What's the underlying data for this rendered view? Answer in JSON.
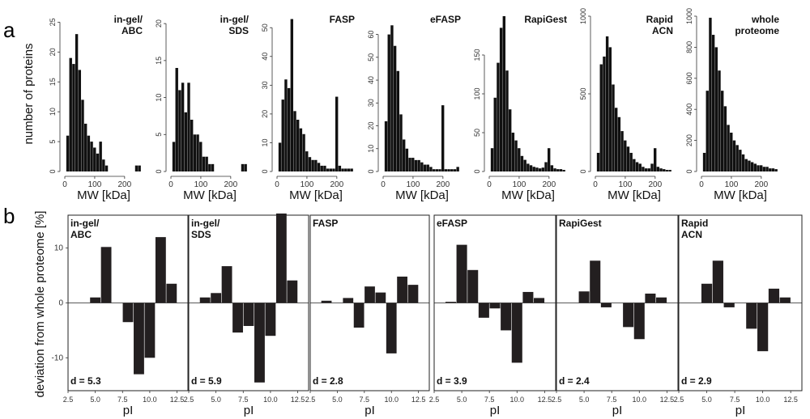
{
  "figure": {
    "panel_a_label": "a",
    "panel_b_label": "b",
    "bar_color": "#111111",
    "deviation_bar_color": "#231f20"
  },
  "chart_data": [
    {
      "type": "bar",
      "panel": "a",
      "title_lines": [
        "in-gel/",
        "ABC"
      ],
      "xlabel": "MW [kDa]",
      "ylabel": "number of proteins",
      "xlim": [
        0,
        260
      ],
      "ylim": [
        0,
        26
      ],
      "xticks": [
        0,
        100,
        200
      ],
      "yticks": [
        0,
        5,
        10,
        15,
        20,
        25
      ],
      "bin_width": 10,
      "x": [
        10,
        20,
        30,
        40,
        50,
        60,
        70,
        80,
        90,
        100,
        110,
        120,
        130,
        140,
        150,
        160,
        170,
        180,
        190,
        200,
        210,
        220,
        230,
        240,
        250
      ],
      "values": [
        6,
        19,
        18,
        23,
        17,
        12,
        8,
        6,
        5,
        4,
        3,
        5,
        2,
        1,
        0,
        0,
        0,
        0,
        0,
        0,
        0,
        0,
        0,
        1,
        1
      ]
    },
    {
      "type": "bar",
      "panel": "a",
      "title_lines": [
        "in-gel/",
        "SDS"
      ],
      "xlabel": "MW [kDa]",
      "xlim": [
        0,
        260
      ],
      "ylim": [
        0,
        21
      ],
      "xticks": [
        0,
        100,
        200
      ],
      "yticks": [
        0,
        5,
        10,
        15,
        20
      ],
      "bin_width": 10,
      "x": [
        10,
        20,
        30,
        40,
        50,
        60,
        70,
        80,
        90,
        100,
        110,
        120,
        130,
        140,
        150,
        160,
        170,
        180,
        190,
        200,
        210,
        220,
        230,
        240,
        250
      ],
      "values": [
        4,
        14,
        11,
        12,
        8,
        12,
        7,
        5,
        5,
        4,
        2,
        2,
        1,
        1,
        0,
        0,
        0,
        0,
        0,
        0,
        0,
        0,
        0,
        1,
        1
      ]
    },
    {
      "type": "bar",
      "panel": "a",
      "title_lines": [
        "FASP"
      ],
      "xlabel": "MW [kDa]",
      "xlim": [
        0,
        260
      ],
      "ylim": [
        0,
        54
      ],
      "xticks": [
        0,
        100,
        200
      ],
      "yticks": [
        0,
        10,
        20,
        30,
        40,
        50
      ],
      "bin_width": 10,
      "x": [
        10,
        20,
        30,
        40,
        50,
        60,
        70,
        80,
        90,
        100,
        110,
        120,
        130,
        140,
        150,
        160,
        170,
        180,
        190,
        200,
        210,
        220,
        230,
        240,
        250
      ],
      "values": [
        10,
        25,
        32,
        29,
        53,
        21,
        18,
        15,
        13,
        7,
        5,
        4,
        4,
        3,
        2,
        2,
        1,
        1,
        1,
        26,
        2,
        1,
        1,
        1,
        1
      ]
    },
    {
      "type": "bar",
      "panel": "a",
      "title_lines": [
        "eFASP"
      ],
      "xlabel": "MW [kDa]",
      "xlim": [
        0,
        260
      ],
      "ylim": [
        0,
        68
      ],
      "xticks": [
        0,
        100,
        200
      ],
      "yticks": [
        0,
        10,
        20,
        30,
        40,
        50,
        60
      ],
      "bin_width": 10,
      "x": [
        10,
        20,
        30,
        40,
        50,
        60,
        70,
        80,
        90,
        100,
        110,
        120,
        130,
        140,
        150,
        160,
        170,
        180,
        190,
        200,
        210,
        220,
        230,
        240,
        250
      ],
      "values": [
        22,
        60,
        64,
        55,
        44,
        25,
        14,
        10,
        6,
        6,
        5,
        5,
        4,
        3,
        3,
        2,
        1,
        1,
        1,
        29,
        1,
        1,
        1,
        1,
        2
      ]
    },
    {
      "type": "bar",
      "panel": "a",
      "title_lines": [
        "RapiGest"
      ],
      "xlabel": "MW [kDa]",
      "xlim": [
        0,
        260
      ],
      "ylim": [
        0,
        200
      ],
      "xticks": [
        0,
        100,
        200
      ],
      "yticks": [
        0,
        50,
        100,
        150
      ],
      "bin_width": 10,
      "x": [
        10,
        20,
        30,
        40,
        50,
        60,
        70,
        80,
        90,
        100,
        110,
        120,
        130,
        140,
        150,
        160,
        170,
        180,
        190,
        200,
        210,
        220,
        230,
        240,
        250
      ],
      "values": [
        30,
        95,
        140,
        185,
        200,
        130,
        80,
        50,
        40,
        30,
        20,
        15,
        10,
        8,
        6,
        5,
        4,
        5,
        12,
        30,
        8,
        4,
        3,
        3,
        2
      ]
    },
    {
      "type": "bar",
      "panel": "a",
      "title_lines": [
        "Rapid",
        "ACN"
      ],
      "xlabel": "MW [kDa]",
      "xlim": [
        0,
        260
      ],
      "ylim": [
        0,
        1000
      ],
      "xticks": [
        0,
        100,
        200
      ],
      "yticks": [
        0,
        500,
        1000
      ],
      "bin_width": 10,
      "x": [
        10,
        20,
        30,
        40,
        50,
        60,
        70,
        80,
        90,
        100,
        110,
        120,
        130,
        140,
        150,
        160,
        170,
        180,
        190,
        200,
        210,
        220,
        230,
        240,
        250
      ],
      "values": [
        120,
        690,
        740,
        870,
        800,
        560,
        410,
        350,
        260,
        200,
        160,
        120,
        80,
        60,
        50,
        30,
        20,
        20,
        50,
        150,
        30,
        20,
        15,
        10,
        10
      ]
    },
    {
      "type": "bar",
      "panel": "a",
      "title_lines": [
        "whole",
        "proteome"
      ],
      "xlabel": "MW [kDa]",
      "xlim": [
        0,
        260
      ],
      "ylim": [
        0,
        1000
      ],
      "xticks": [
        0,
        100,
        200
      ],
      "yticks": [
        0,
        200,
        400,
        600,
        800,
        1000
      ],
      "bin_width": 10,
      "x": [
        10,
        20,
        30,
        40,
        50,
        60,
        70,
        80,
        90,
        100,
        110,
        120,
        130,
        140,
        150,
        160,
        170,
        180,
        190,
        200,
        210,
        220,
        230,
        240,
        250
      ],
      "values": [
        120,
        520,
        990,
        880,
        800,
        650,
        520,
        420,
        300,
        250,
        200,
        170,
        140,
        110,
        80,
        70,
        60,
        50,
        40,
        40,
        30,
        30,
        20,
        20,
        15
      ]
    },
    {
      "type": "bar",
      "panel": "b",
      "title_lines": [
        "in-gel/",
        "ABC"
      ],
      "ylabel": "deviation from whole proteome [%]",
      "xlabel": "pI",
      "xlim": [
        2.5,
        13.5
      ],
      "ylim": [
        -16,
        16
      ],
      "xticks": [
        2.5,
        5.0,
        7.5,
        10.0,
        12.5
      ],
      "yticks": [
        -10,
        0,
        10
      ],
      "bin_width": 1,
      "x": [
        3,
        4,
        5,
        6,
        7,
        8,
        9,
        10,
        11,
        12,
        13
      ],
      "values": [
        0,
        0,
        1,
        10.2,
        0,
        -3.5,
        -13,
        -10,
        12,
        3.5,
        0
      ],
      "annotation": "d = 5.3"
    },
    {
      "type": "bar",
      "panel": "b",
      "title_lines": [
        "in-gel/",
        "SDS"
      ],
      "xlabel": "pI",
      "xlim": [
        2.5,
        13.5
      ],
      "ylim": [
        -16,
        16
      ],
      "xticks": [
        2.5,
        5.0,
        7.5,
        10.0,
        12.5
      ],
      "yticks": [
        -10,
        0,
        10
      ],
      "bin_width": 1,
      "x": [
        3,
        4,
        5,
        6,
        7,
        8,
        9,
        10,
        11,
        12,
        13
      ],
      "values": [
        0,
        1,
        1.8,
        6.7,
        -5.4,
        -4.2,
        -14.5,
        -6,
        16.3,
        4.1,
        0
      ],
      "annotation": "d = 5.9"
    },
    {
      "type": "bar",
      "panel": "b",
      "title_lines": [
        "FASP"
      ],
      "xlabel": "pI",
      "xlim": [
        2.5,
        13.5
      ],
      "ylim": [
        -16,
        16
      ],
      "xticks": [
        2.5,
        5.0,
        7.5,
        10.0,
        12.5
      ],
      "yticks": [
        -10,
        0,
        10
      ],
      "bin_width": 1,
      "x": [
        3,
        4,
        5,
        6,
        7,
        8,
        9,
        10,
        11,
        12,
        13
      ],
      "values": [
        0,
        0.4,
        0,
        0.9,
        -4.5,
        3,
        1.9,
        -9.2,
        4.8,
        3.3,
        0
      ],
      "annotation": "d = 2.8"
    },
    {
      "type": "bar",
      "panel": "b",
      "title_lines": [
        "eFASP"
      ],
      "xlabel": "pI",
      "xlim": [
        2.5,
        13.5
      ],
      "ylim": [
        -16,
        16
      ],
      "xticks": [
        2.5,
        5.0,
        7.5,
        10.0,
        12.5
      ],
      "yticks": [
        -10,
        0,
        10
      ],
      "bin_width": 1,
      "x": [
        3,
        4,
        5,
        6,
        7,
        8,
        9,
        10,
        11,
        12,
        13
      ],
      "values": [
        0,
        0.2,
        10.6,
        6,
        -2.7,
        -1,
        -5,
        -10.9,
        2,
        0.9,
        0
      ],
      "annotation": "d = 3.9"
    },
    {
      "type": "bar",
      "panel": "b",
      "title_lines": [
        "RapiGest"
      ],
      "xlabel": "pI",
      "xlim": [
        2.5,
        13.5
      ],
      "ylim": [
        -16,
        16
      ],
      "xticks": [
        2.5,
        5.0,
        7.5,
        10.0,
        12.5
      ],
      "yticks": [
        -10,
        0,
        10
      ],
      "bin_width": 1,
      "x": [
        3,
        4,
        5,
        6,
        7,
        8,
        9,
        10,
        11,
        12,
        13
      ],
      "values": [
        0,
        0,
        2.1,
        7.7,
        -0.8,
        0,
        -4.4,
        -6.6,
        1.7,
        1,
        0
      ],
      "annotation": "d = 2.4"
    },
    {
      "type": "bar",
      "panel": "b",
      "title_lines": [
        "Rapid",
        "ACN"
      ],
      "xlabel": "pI",
      "xlim": [
        2.5,
        13.5
      ],
      "ylim": [
        -16,
        16
      ],
      "xticks": [
        2.5,
        5.0,
        7.5,
        10.0,
        12.5
      ],
      "yticks": [
        -10,
        0,
        10
      ],
      "bin_width": 1,
      "x": [
        3,
        4,
        5,
        6,
        7,
        8,
        9,
        10,
        11,
        12,
        13
      ],
      "values": [
        0,
        0,
        3.5,
        7.7,
        -0.8,
        0,
        -4.7,
        -8.8,
        2.6,
        1,
        0
      ],
      "annotation": "d = 2.9"
    }
  ]
}
